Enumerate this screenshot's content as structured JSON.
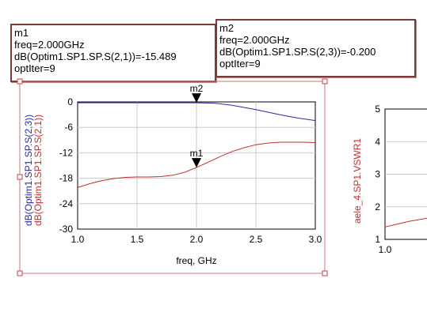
{
  "marker_m1": {
    "name": "m1",
    "freq": "freq=2.000GHz",
    "value": "dB(Optim1.SP1.SP.S(2,1))=-15.489",
    "iter": "optIter=9"
  },
  "marker_m2": {
    "name": "m2",
    "freq": "freq=2.000GHz",
    "value": "dB(Optim1.SP1.SP.S(2,3))=-0.200",
    "iter": "optIter=9"
  },
  "chart_data": [
    {
      "type": "line",
      "xlabel": "freq, GHz",
      "ylabel_series": [
        "dB(Optim1.SP1.SP.S(2,3))",
        "dB(Optim1.SP1.SP.S(2,1))"
      ],
      "xlim": [
        1.0,
        3.0
      ],
      "ylim": [
        -30,
        0
      ],
      "xticks": [
        "1.0",
        "1.5",
        "2.0",
        "2.5",
        "3.0"
      ],
      "yticks": [
        "0",
        "-6",
        "-12",
        "-18",
        "-24",
        "-30"
      ],
      "grid": true,
      "colors": {
        "s23": "#2a2aa0",
        "s21": "#c03030"
      },
      "series": [
        {
          "name": "dB(Optim1.SP1.SP.S(2,3))",
          "color": "#2a2aa0",
          "x": [
            1.0,
            1.25,
            1.5,
            1.75,
            2.0,
            2.15,
            2.3,
            2.5,
            2.7,
            2.85,
            3.0
          ],
          "y": [
            -0.2,
            -0.2,
            -0.2,
            -0.2,
            -0.2,
            -0.3,
            -0.8,
            -1.8,
            -3.0,
            -3.8,
            -4.4
          ]
        },
        {
          "name": "dB(Optim1.SP1.SP.S(2,1))",
          "color": "#c03030",
          "x": [
            1.0,
            1.1,
            1.2,
            1.3,
            1.4,
            1.5,
            1.6,
            1.7,
            1.8,
            1.9,
            2.0,
            2.1,
            2.2,
            2.3,
            2.4,
            2.5,
            2.6,
            2.7,
            2.8,
            2.9,
            3.0
          ],
          "y": [
            -20.2,
            -19.3,
            -18.6,
            -18.1,
            -17.8,
            -17.7,
            -17.7,
            -17.6,
            -17.3,
            -16.6,
            -15.489,
            -14.2,
            -12.9,
            -11.7,
            -10.8,
            -10.1,
            -9.7,
            -9.5,
            -9.5,
            -9.5,
            -9.6
          ]
        }
      ],
      "markers": [
        {
          "name": "m1",
          "x": 2.0,
          "y": -15.489
        },
        {
          "name": "m2",
          "x": 2.0,
          "y": -0.2
        }
      ]
    },
    {
      "type": "line",
      "ylabel": "aele_4.SP1.VSWR1",
      "xticks": [
        "1.0"
      ],
      "yticks": [
        "5",
        "4",
        "3",
        "2",
        "1"
      ],
      "ylim": [
        1,
        5
      ],
      "xlim": [
        1.0,
        3.0
      ],
      "series": [
        {
          "name": "aele_4.SP1.VSWR1",
          "color": "#c03030",
          "x": [
            1.0,
            1.2,
            1.4
          ],
          "y": [
            1.38,
            1.55,
            1.68
          ]
        }
      ]
    }
  ]
}
